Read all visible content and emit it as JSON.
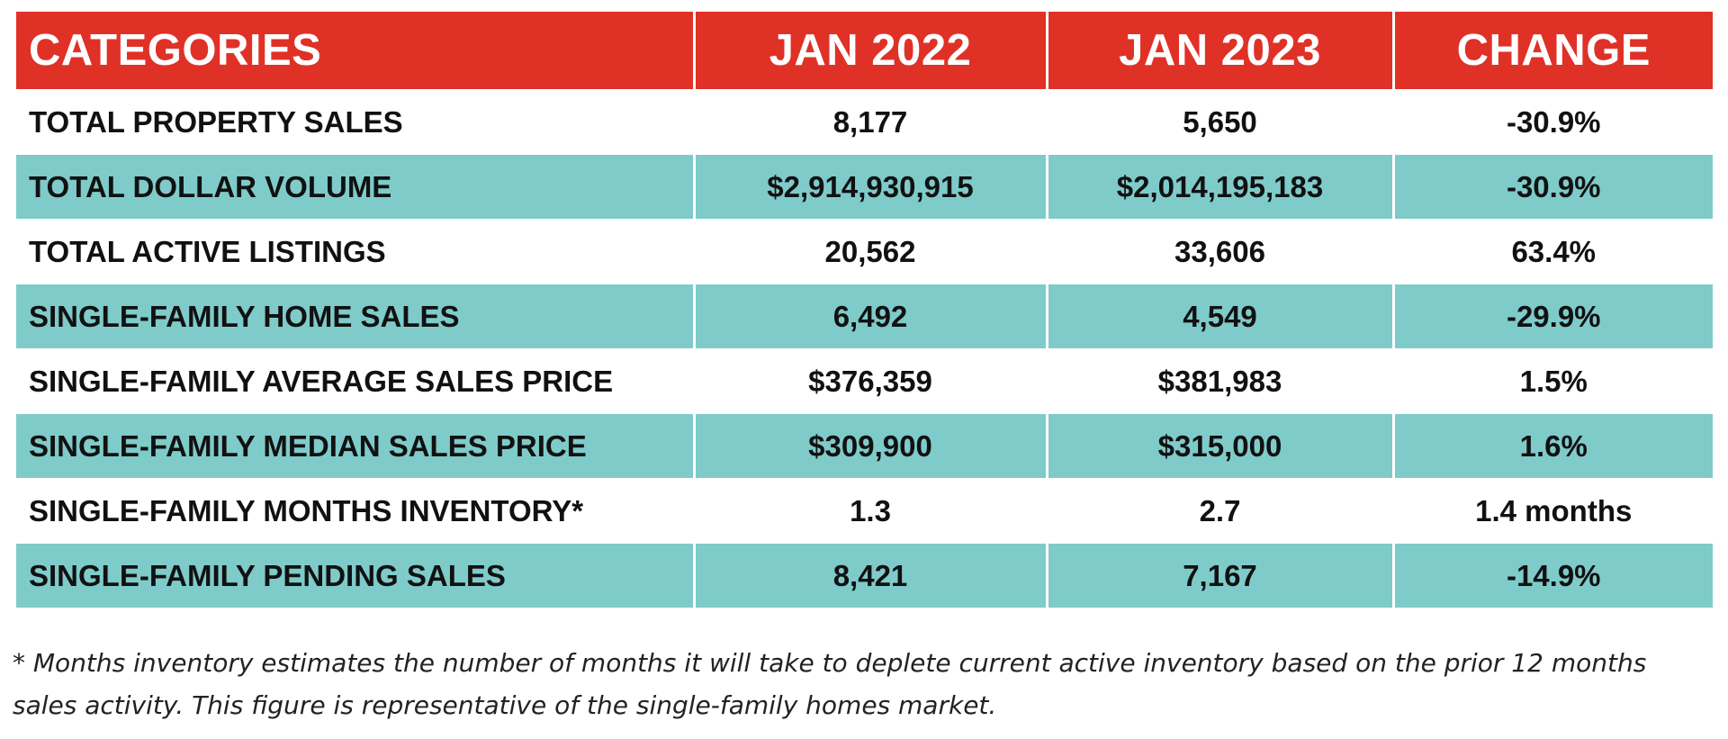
{
  "table": {
    "headers": [
      "CATEGORIES",
      "JAN 2022",
      "JAN 2023",
      "CHANGE"
    ],
    "rows": [
      [
        "TOTAL PROPERTY SALES",
        "8,177",
        "5,650",
        "-30.9%"
      ],
      [
        "TOTAL DOLLAR VOLUME",
        "$2,914,930,915",
        "$2,014,195,183",
        "-30.9%"
      ],
      [
        "TOTAL ACTIVE LISTINGS",
        "20,562",
        "33,606",
        "63.4%"
      ],
      [
        "SINGLE-FAMILY HOME SALES",
        "6,492",
        "4,549",
        "-29.9%"
      ],
      [
        "SINGLE-FAMILY AVERAGE SALES PRICE",
        "$376,359",
        "$381,983",
        "1.5%"
      ],
      [
        "SINGLE-FAMILY MEDIAN SALES PRICE",
        "$309,900",
        "$315,000",
        "1.6%"
      ],
      [
        "SINGLE-FAMILY MONTHS INVENTORY*",
        "1.3",
        "2.7",
        "1.4 months"
      ],
      [
        "SINGLE-FAMILY PENDING SALES",
        "8,421",
        "7,167",
        "-14.9%"
      ]
    ]
  },
  "footnote": {
    "line1": "* Months inventory estimates the number of months it will take to deplete current active inventory based on the prior 12 months",
    "line2": "sales activity. This figure is representative of the single-family homes market."
  },
  "colors": {
    "header_bg": "#e03127",
    "band_bg": "#7ecbca",
    "text": "#111111"
  }
}
